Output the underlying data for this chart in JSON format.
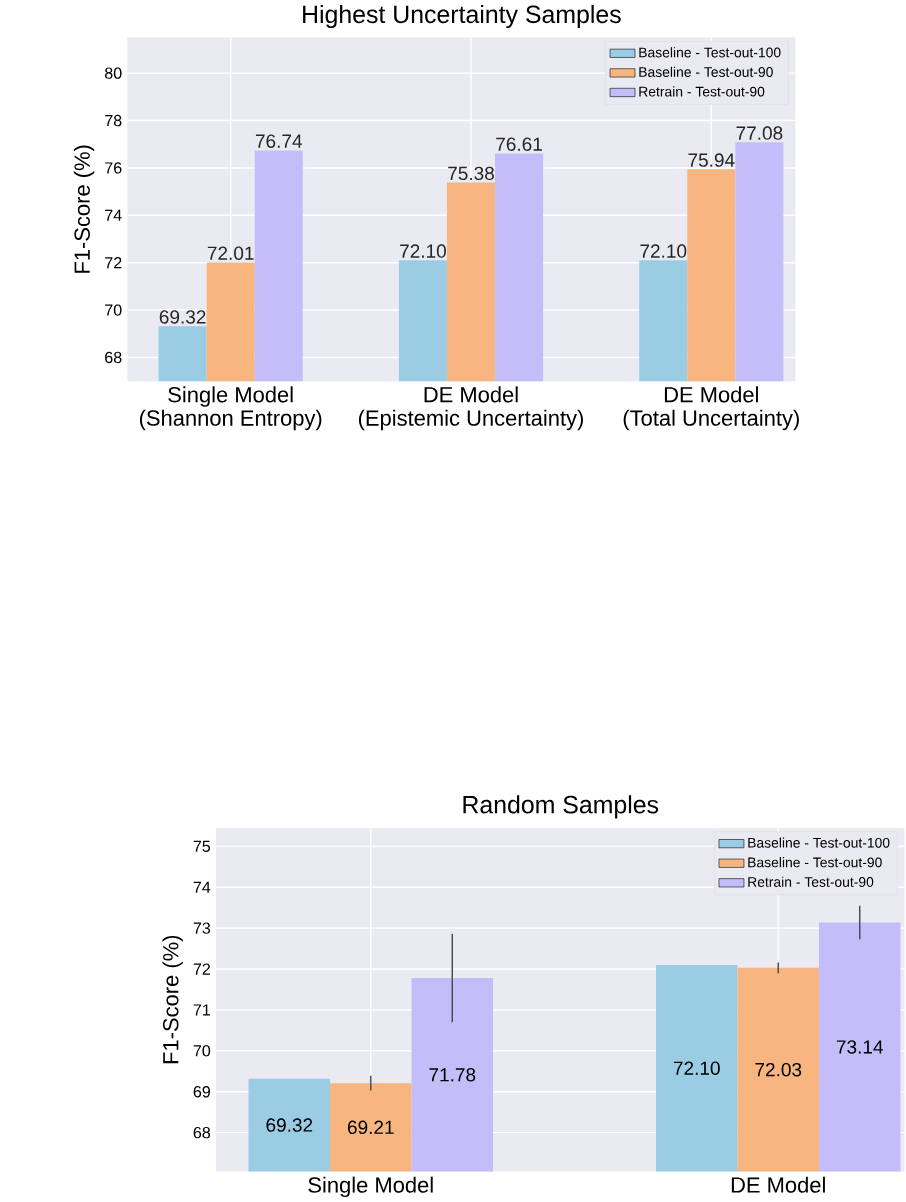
{
  "chart_data": [
    {
      "type": "bar",
      "title": "Highest Uncertainty Samples",
      "ylabel": "F1-Score (%)",
      "categories": [
        "Single Model\n(Shannon Entropy)",
        "DE Model\n(Epistemic Uncertainty)",
        "DE Model\n(Total Uncertainty)"
      ],
      "series": [
        {
          "name": "Baseline - Test-out-100",
          "color": "#9acde4",
          "values": [
            69.32,
            72.1,
            72.1
          ],
          "value_labels": [
            "69.32",
            "72.10",
            "72.10"
          ]
        },
        {
          "name": "Baseline - Test-out-90",
          "color": "#f7b680",
          "values": [
            72.01,
            75.38,
            75.94
          ],
          "value_labels": [
            "72.01",
            "75.38",
            "75.94"
          ]
        },
        {
          "name": "Retrain - Test-out-90",
          "color": "#c4bdf9",
          "values": [
            76.74,
            76.61,
            77.08
          ],
          "value_labels": [
            "76.74",
            "76.61",
            "77.08"
          ]
        }
      ],
      "ylim": [
        67,
        81.5
      ],
      "yticks": [
        68,
        70,
        72,
        74,
        76,
        78,
        80
      ],
      "grid": true,
      "legend": "top right"
    },
    {
      "type": "bar",
      "title": "Random Samples",
      "ylabel": "F1-Score (%)",
      "categories": [
        "Single Model",
        "DE Model"
      ],
      "series": [
        {
          "name": "Baseline - Test-out-100",
          "color": "#9acde4",
          "values": [
            69.32,
            72.1
          ],
          "value_labels": [
            "69.32",
            "72.10"
          ]
        },
        {
          "name": "Baseline - Test-out-90",
          "color": "#f7b680",
          "values": [
            69.21,
            72.03
          ],
          "value_labels": [
            "69.21",
            "72.03"
          ],
          "errors": [
            0.18,
            0.13
          ]
        },
        {
          "name": "Retrain - Test-out-90",
          "color": "#c4bdf9",
          "values": [
            71.78,
            73.14
          ],
          "value_labels": [
            "71.78",
            "73.14"
          ],
          "errors": [
            1.08,
            0.41
          ]
        }
      ],
      "ylim": [
        67.05,
        75.45
      ],
      "yticks": [
        68,
        69,
        70,
        71,
        72,
        73,
        74,
        75
      ],
      "grid": true,
      "legend": "top right"
    }
  ]
}
